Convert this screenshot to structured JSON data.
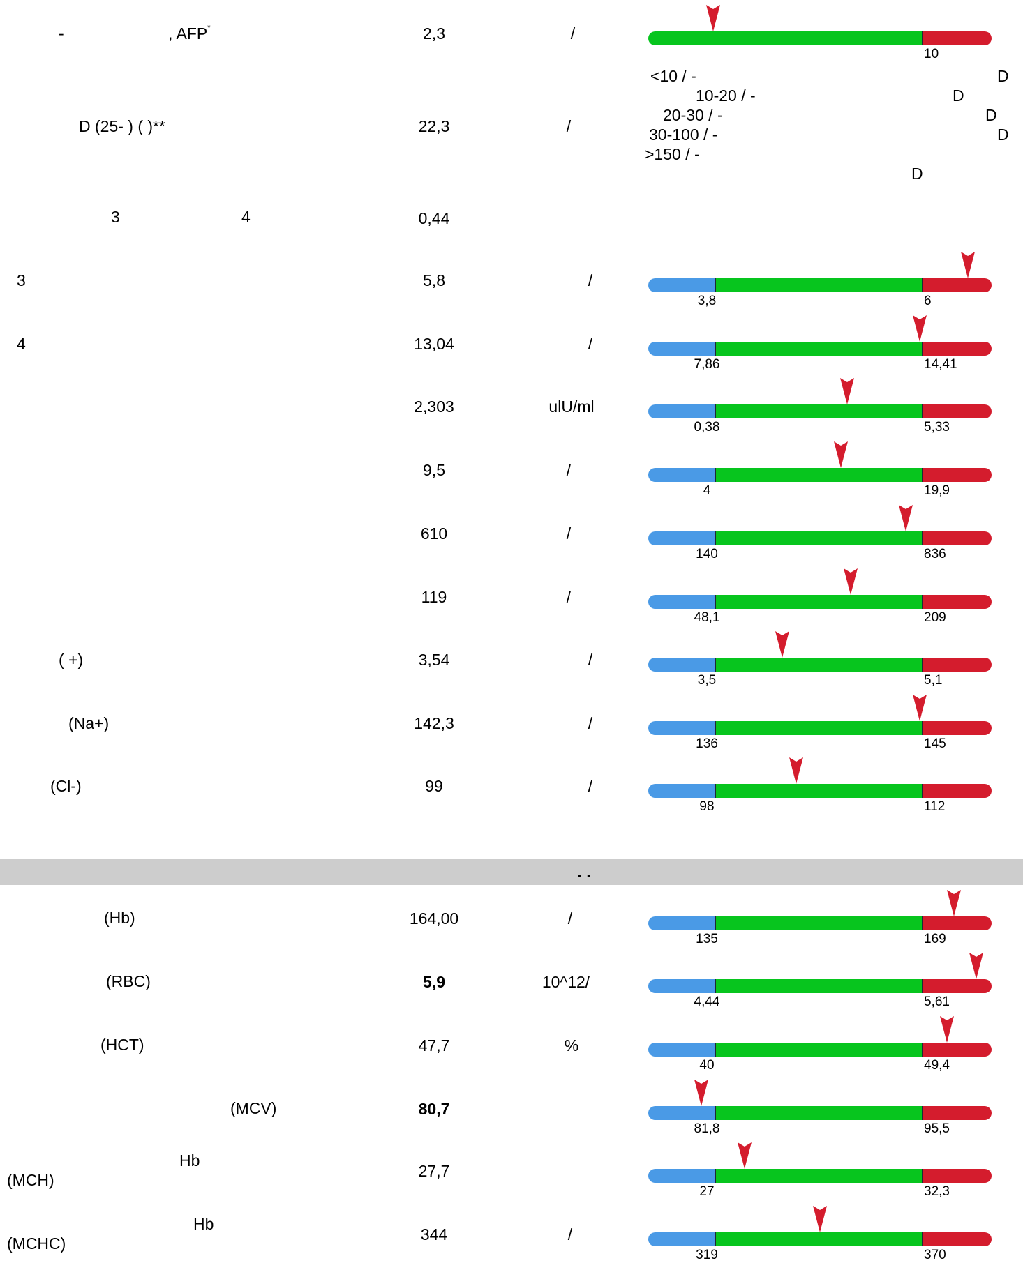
{
  "colors": {
    "low": "#4a9ae6",
    "normal": "#07c51e",
    "high": "#d41c2d",
    "marker": "#d41c2d",
    "section_bar": "#cdcdcd"
  },
  "section_title": ".      .",
  "rows": [
    {
      "name_parts": [
        "-",
        ", AFP"
      ],
      "name_sup": "*",
      "value": "2,3",
      "unit": "/",
      "range": {
        "type": "upper",
        "high_label": "10",
        "marker_position": 0.19
      }
    },
    {
      "name": "D (25-     ) (                        )**",
      "value": "22,3",
      "unit": "/",
      "note_lines": [
        "<10    /     -",
        "10-20    /     -",
        "20-30    /     -",
        "30-100    /     -",
        ">150    /     -"
      ],
      "note_suffix": "D"
    },
    {
      "name_parts": [
        "3",
        "4"
      ],
      "value": "0,44",
      "unit": ""
    },
    {
      "name": "3",
      "value": "5,8",
      "unit": "/",
      "range": {
        "low_label": "3,8",
        "high_label": "6",
        "marker_position": 0.93
      }
    },
    {
      "name": "4",
      "value": "13,04",
      "unit": "/",
      "range": {
        "low_label": "7,86",
        "high_label": "14,41",
        "marker_position": 0.79
      }
    },
    {
      "name": "",
      "value": "2,303",
      "unit": "ulU/ml",
      "range": {
        "low_label": "0,38",
        "high_label": "5,33",
        "marker_position": 0.58
      }
    },
    {
      "name": "",
      "value": "9,5",
      "unit": "/",
      "range": {
        "low_label": "4",
        "high_label": "19,9",
        "marker_position": 0.56
      }
    },
    {
      "name": "",
      "value": "610",
      "unit": "/",
      "range": {
        "low_label": "140",
        "high_label": "836",
        "marker_position": 0.75
      }
    },
    {
      "name": "",
      "value": "119",
      "unit": "/",
      "range": {
        "low_label": "48,1",
        "high_label": "209",
        "marker_position": 0.59
      }
    },
    {
      "name": "(  +)",
      "value": "3,54",
      "unit": "/",
      "range": {
        "low_label": "3,5",
        "high_label": "5,1",
        "marker_position": 0.39
      }
    },
    {
      "name": "(Na+)",
      "value": "142,3",
      "unit": "/",
      "range": {
        "low_label": "136",
        "high_label": "145",
        "marker_position": 0.79
      }
    },
    {
      "name": "(Cl-)",
      "value": "99",
      "unit": "/",
      "range": {
        "low_label": "98",
        "high_label": "112",
        "marker_position": 0.43
      }
    },
    {
      "name": "(Hb)",
      "value": "164,00",
      "unit": "/",
      "range": {
        "low_label": "135",
        "high_label": "169",
        "marker_position": 0.89
      }
    },
    {
      "name": "(RBC)",
      "value": "5,9",
      "unit": "10^12/",
      "bold": true,
      "range": {
        "low_label": "4,44",
        "high_label": "5,61",
        "marker_position": 0.955
      }
    },
    {
      "name": "(HCT)",
      "value": "47,7",
      "unit": "%",
      "range": {
        "low_label": "40",
        "high_label": "49,4",
        "marker_position": 0.87
      }
    },
    {
      "name": "(MCV)",
      "value": "80,7",
      "unit": "",
      "bold": true,
      "range": {
        "low_label": "81,8",
        "high_label": "95,5",
        "marker_position": 0.155
      }
    },
    {
      "name_parts": [
        "Hb",
        "(MCH)"
      ],
      "value": "27,7",
      "unit": "",
      "range": {
        "low_label": "27",
        "high_label": "32,3",
        "marker_position": 0.28
      }
    },
    {
      "name_parts": [
        "Hb",
        "(MCHC)"
      ],
      "value": "344",
      "unit": "/",
      "range": {
        "low_label": "319",
        "high_label": "370",
        "marker_position": 0.5
      }
    }
  ]
}
